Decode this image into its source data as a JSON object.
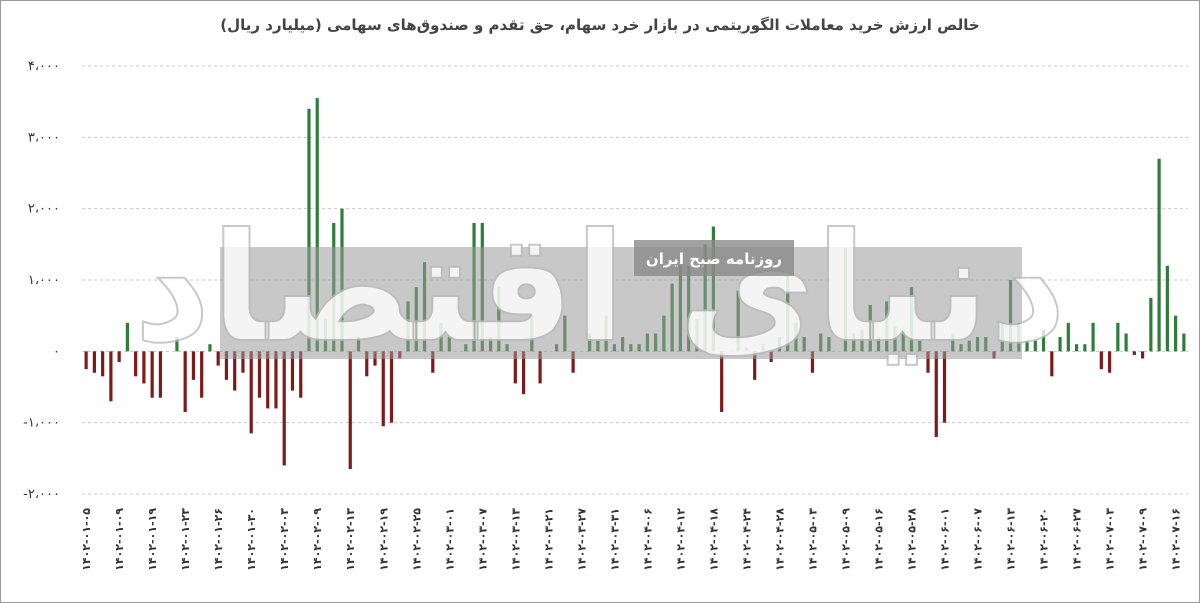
{
  "chart_data": {
    "type": "bar",
    "title": "خالص ارزش خرید معاملات الگوریتمی در بازار خرد سهام، حق تقدم و صندوق‌های سهامی (میلیارد ریال)",
    "watermark": "دنیای اقتصاد",
    "watermark_subtitle": "روزنامه صبح ایران",
    "categories": [
      "۱۴۰۲-۰۱-۰۵",
      null,
      null,
      null,
      "۱۴۰۲-۰۱-۰۹",
      null,
      null,
      null,
      "۱۴۰۲-۰۱-۱۹",
      null,
      null,
      null,
      "۱۴۰۲-۰۱-۲۳",
      null,
      null,
      null,
      "۱۴۰۲-۰۱-۲۶",
      null,
      null,
      null,
      "۱۴۰۲-۰۱-۳۰",
      null,
      null,
      null,
      "۱۴۰۲-۰۲-۰۳",
      null,
      null,
      null,
      "۱۴۰۲-۰۲-۰۹",
      null,
      null,
      null,
      "۱۴۰۲-۰۲-۱۳",
      null,
      null,
      null,
      "۱۴۰۲-۰۲-۱۹",
      null,
      null,
      null,
      "۱۴۰۲-۰۲-۲۵",
      null,
      null,
      null,
      "۱۴۰۲-۰۳-۰۱",
      null,
      null,
      null,
      "۱۴۰۲-۰۳-۰۷",
      null,
      null,
      null,
      "۱۴۰۲-۰۳-۱۳",
      null,
      null,
      null,
      "۱۴۰۲-۰۳-۲۱",
      null,
      null,
      null,
      "۱۴۰۲-۰۳-۲۷",
      null,
      null,
      null,
      "۱۴۰۲-۰۳-۳۱",
      null,
      null,
      null,
      "۱۴۰۲-۰۴-۰۶",
      null,
      null,
      null,
      "۱۴۰۲-۰۴-۱۲",
      null,
      null,
      null,
      "۱۴۰۲-۰۴-۱۸",
      null,
      null,
      null,
      "۱۴۰۲-۰۴-۲۴",
      null,
      null,
      null,
      "۱۴۰۲-۰۴-۲۸",
      null,
      null,
      null,
      "۱۴۰۲-۰۵-۰۳",
      null,
      null,
      null,
      "۱۴۰۲-۰۵-۰۹",
      null,
      null,
      null,
      "۱۴۰۲-۰۵-۱۶",
      null,
      null,
      null,
      "۱۴۰۲-۰۵-۲۸",
      null,
      null,
      null,
      "۱۴۰۲-۰۶-۰۱",
      null,
      null,
      null,
      "۱۴۰۲-۰۶-۰۷",
      null,
      null,
      null,
      "۱۴۰۲-۰۶-۱۳",
      null,
      null,
      null,
      "۱۴۰۲-۰۶-۲۰",
      null,
      null,
      null,
      "۱۴۰۲-۰۶-۲۷",
      null,
      null,
      null,
      "۱۴۰۲-۰۷-۰۳",
      null,
      null,
      null,
      "۱۴۰۲-۰۷-۰۹",
      null,
      null,
      null,
      "۱۴۰۲-۰۷-۱۶",
      null
    ],
    "values": [
      -250,
      -300,
      -350,
      -700,
      -150,
      400,
      -350,
      -450,
      -650,
      -650,
      0,
      200,
      -850,
      -400,
      -650,
      100,
      -200,
      -400,
      -550,
      -300,
      -1150,
      -650,
      -800,
      -800,
      -1600,
      -550,
      -650,
      3400,
      3550,
      450,
      1800,
      2000,
      -1650,
      200,
      -350,
      -200,
      -1050,
      -1000,
      -100,
      700,
      900,
      1250,
      -300,
      400,
      200,
      0,
      100,
      1800,
      1800,
      200,
      900,
      100,
      -450,
      -600,
      500,
      -450,
      0,
      100,
      500,
      -300,
      0,
      250,
      150,
      500,
      100,
      200,
      100,
      100,
      250,
      250,
      500,
      950,
      1200,
      1200,
      450,
      1500,
      1750,
      -850,
      0,
      850,
      50,
      -400,
      100,
      -150,
      200,
      1100,
      400,
      200,
      -300,
      250,
      200,
      0,
      1450,
      250,
      300,
      650,
      200,
      700,
      350,
      300,
      900,
      150,
      -300,
      -1200,
      -1000,
      250,
      100,
      150,
      200,
      200,
      -100,
      400,
      1000,
      400,
      150,
      150,
      300,
      -350,
      200,
      400,
      100,
      100,
      400,
      -250,
      -300,
      400,
      250,
      -50,
      -100,
      750,
      2700,
      1200,
      500,
      250
    ],
    "positive_color": "#2f7d3a",
    "negative_color": "#7e1a1a",
    "ylim": [
      -2000,
      4000
    ],
    "yticks": [
      {
        "value": -2000,
        "label": "-۲،۰۰۰"
      },
      {
        "value": -1000,
        "label": "-۱،۰۰۰"
      },
      {
        "value": 0,
        "label": "۰"
      },
      {
        "value": 1000,
        "label": "۱،۰۰۰"
      },
      {
        "value": 2000,
        "label": "۲،۰۰۰"
      },
      {
        "value": 3000,
        "label": "۳،۰۰۰"
      },
      {
        "value": 4000,
        "label": "۴،۰۰۰"
      }
    ],
    "grid": true
  }
}
